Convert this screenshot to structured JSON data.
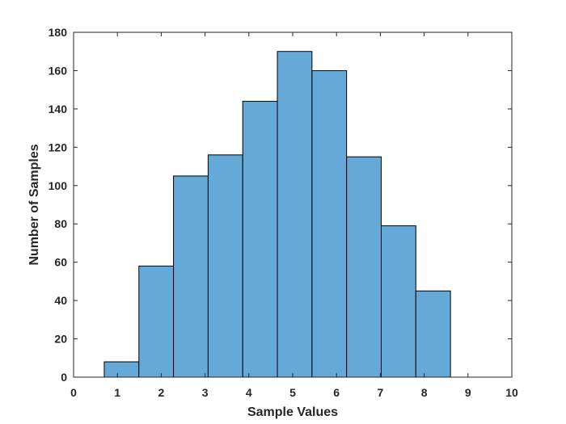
{
  "chart_data": {
    "type": "bar",
    "subtype": "histogram",
    "title": "",
    "xlabel": "Sample Values",
    "ylabel": "Number of Samples",
    "xlim": [
      0,
      10
    ],
    "ylim": [
      0,
      180
    ],
    "xticks": [
      0,
      1,
      2,
      3,
      4,
      5,
      6,
      7,
      8,
      9,
      10
    ],
    "yticks": [
      0,
      20,
      40,
      60,
      80,
      100,
      120,
      140,
      160,
      180
    ],
    "bin_edges": [
      0.7,
      1.49,
      2.28,
      3.07,
      3.86,
      4.65,
      5.44,
      6.23,
      7.02,
      7.81,
      8.6
    ],
    "values": [
      8,
      58,
      105,
      116,
      144,
      170,
      160,
      115,
      79,
      45
    ],
    "grid": false,
    "bar_color": "#64a9d8",
    "edge_color": "#000000"
  }
}
